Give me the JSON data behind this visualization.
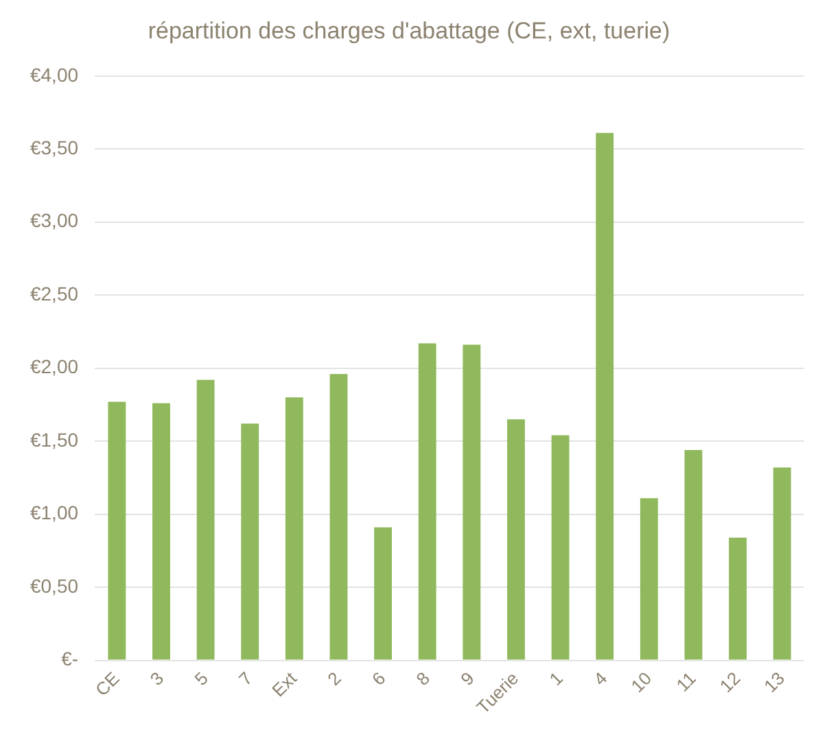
{
  "chart_data": {
    "type": "bar",
    "title": "répartition des charges d'abattage (CE, ext, tuerie)",
    "categories": [
      "CE",
      "3",
      "5",
      "7",
      "Ext",
      "2",
      "6",
      "8",
      "9",
      "Tuerie",
      "1",
      "4",
      "10",
      "11",
      "12",
      "13"
    ],
    "values": [
      1.77,
      1.76,
      1.92,
      1.62,
      1.8,
      1.96,
      0.91,
      2.17,
      2.16,
      1.65,
      1.54,
      3.61,
      1.11,
      1.44,
      0.84,
      1.32
    ],
    "color": "#8fb95c",
    "ylim": [
      0,
      4
    ],
    "yticks": [
      {
        "value": 0,
        "label": "€-"
      },
      {
        "value": 0.5,
        "label": "€0,50"
      },
      {
        "value": 1,
        "label": "€1,00"
      },
      {
        "value": 1.5,
        "label": "€1,50"
      },
      {
        "value": 2,
        "label": "€2,00"
      },
      {
        "value": 2.5,
        "label": "€2,50"
      },
      {
        "value": 3,
        "label": "€3,00"
      },
      {
        "value": 3.5,
        "label": "€3,50"
      },
      {
        "value": 4,
        "label": "€4,00"
      }
    ],
    "grid": "y"
  }
}
